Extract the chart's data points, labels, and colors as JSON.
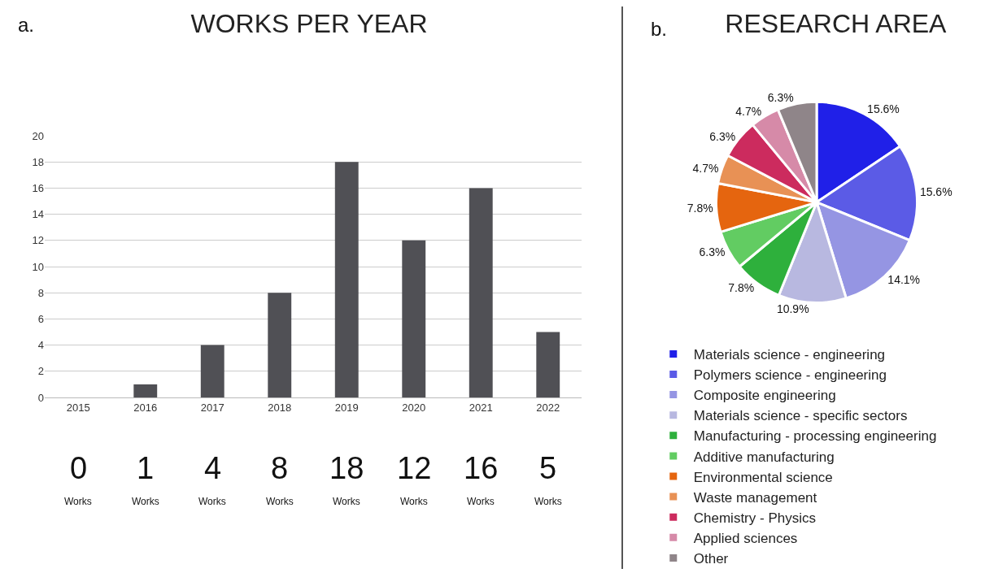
{
  "chart_data": [
    {
      "type": "bar",
      "title": "WORKS PER YEAR",
      "categories": [
        "2015",
        "2016",
        "2017",
        "2018",
        "2019",
        "2020",
        "2021",
        "2022"
      ],
      "values": [
        0,
        1,
        4,
        8,
        18,
        12,
        16,
        5
      ],
      "color": "#505055",
      "ylim": [
        0,
        20
      ],
      "yticks": [
        0,
        2,
        4,
        6,
        8,
        10,
        12,
        14,
        16,
        18,
        20
      ],
      "grid": "y",
      "data_labels": true,
      "annotations": [
        "a.",
        "Works",
        "Works",
        "Works",
        "Works",
        "Works",
        "Works",
        "Works",
        "Works"
      ]
    },
    {
      "type": "pie",
      "title": "RESEARCH AREA",
      "categories": [
        "Materials science - engineering",
        "Polymers science - engineering",
        "Composite engineering",
        "Materials science - specific sectors",
        "Manufacturing - processing engineering",
        "Additive manufacturing",
        "Environmental science",
        "Waste management",
        "Chemistry - Physics",
        "Applied sciences",
        "Other"
      ],
      "values": [
        15.6,
        15.6,
        14.1,
        10.9,
        7.8,
        6.3,
        7.8,
        4.7,
        6.3,
        4.7,
        6.3
      ],
      "value_labels": [
        "15.6%",
        "15.6%",
        "14.1%",
        "10.9%",
        "7.8%",
        "6.3%",
        "7.8%",
        "4.7%",
        "6.3%",
        "4.7%",
        "6.3%"
      ],
      "colors": [
        "#2020e8",
        "#5b5be6",
        "#9595e3",
        "#b8b8e0",
        "#2eb03c",
        "#62cc62",
        "#e5650f",
        "#e89155",
        "#cc2b5e",
        "#d68aa8",
        "#8f8589"
      ],
      "legend": "bottom",
      "annotations": [
        "b."
      ]
    }
  ]
}
